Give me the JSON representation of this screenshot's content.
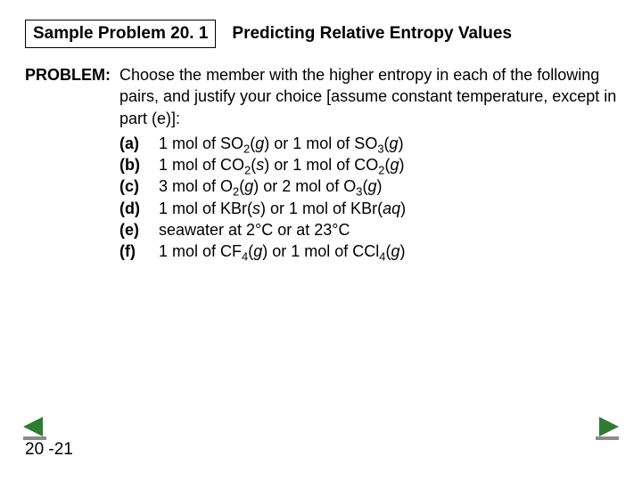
{
  "header": {
    "box_label": "Sample Problem 20. 1",
    "title": "Predicting Relative Entropy Values"
  },
  "problem": {
    "label": "PROBLEM:",
    "intro": "Choose the member with the higher entropy in each of the following pairs, and justify your choice [assume constant temperature, except in part (e)]:",
    "items": [
      {
        "letter": "(a)",
        "html": "1 mol of SO<sub>2</sub>(<span class=\"italic\">g</span>) or 1 mol of SO<sub>3</sub>(<span class=\"italic\">g</span>)"
      },
      {
        "letter": "(b)",
        "html": "1 mol of CO<sub>2</sub>(<span class=\"italic\">s</span>) or 1 mol of CO<sub>2</sub>(<span class=\"italic\">g</span>)"
      },
      {
        "letter": "(c)",
        "html": "3 mol of O<sub>2</sub>(<span class=\"italic\">g</span>) or 2 mol of O<sub>3</sub>(<span class=\"italic\">g</span>)"
      },
      {
        "letter": "(d)",
        "html": "1 mol of KBr(<span class=\"italic\">s</span>) or 1 mol of KBr(<span class=\"italic\">aq</span>)"
      },
      {
        "letter": "(e)",
        "html": "seawater at 2°C or at 23°C"
      },
      {
        "letter": "(f)",
        "html": "1 mol of CF<sub>4</sub>(<span class=\"italic\">g</span>) or 1 mol of CCl<sub>4</sub>(<span class=\"italic\">g</span>)"
      }
    ]
  },
  "page_number": "20 -21",
  "colors": {
    "arrow": "#2e7d32",
    "text": "#000000",
    "background": "#ffffff"
  }
}
